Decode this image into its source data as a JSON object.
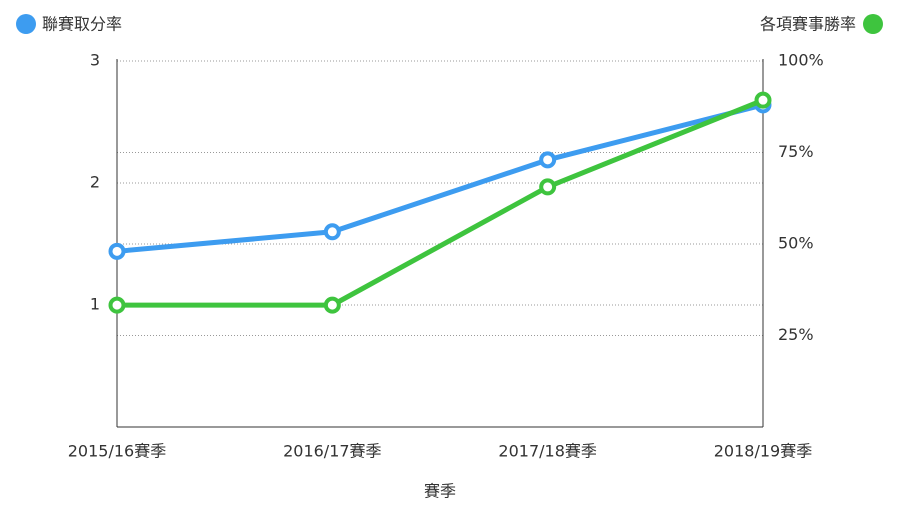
{
  "chart_data": {
    "type": "line",
    "x_label": "賽季",
    "categories": [
      "2015/16賽季",
      "2016/17賽季",
      "2017/18賽季",
      "2018/19賽季"
    ],
    "series": [
      {
        "name": "聯賽取分率",
        "color": "#3d9cf0",
        "values": [
          1.44,
          1.6,
          2.19,
          2.64
        ]
      },
      {
        "name": "各項賽事勝率",
        "color": "#3ec43e",
        "axis": "y2",
        "values": [
          33.3,
          33.3,
          65.6,
          89.3
        ]
      }
    ],
    "ylim": [
      0,
      3
    ],
    "yticks": [
      1,
      2,
      3
    ],
    "y2lim": [
      0,
      100
    ],
    "y2ticks": [
      {
        "value": 25,
        "label": "25%"
      },
      {
        "value": 50,
        "label": "50%"
      },
      {
        "value": 75,
        "label": "75%"
      },
      {
        "value": 100,
        "label": "100%"
      }
    ],
    "grid": true
  }
}
